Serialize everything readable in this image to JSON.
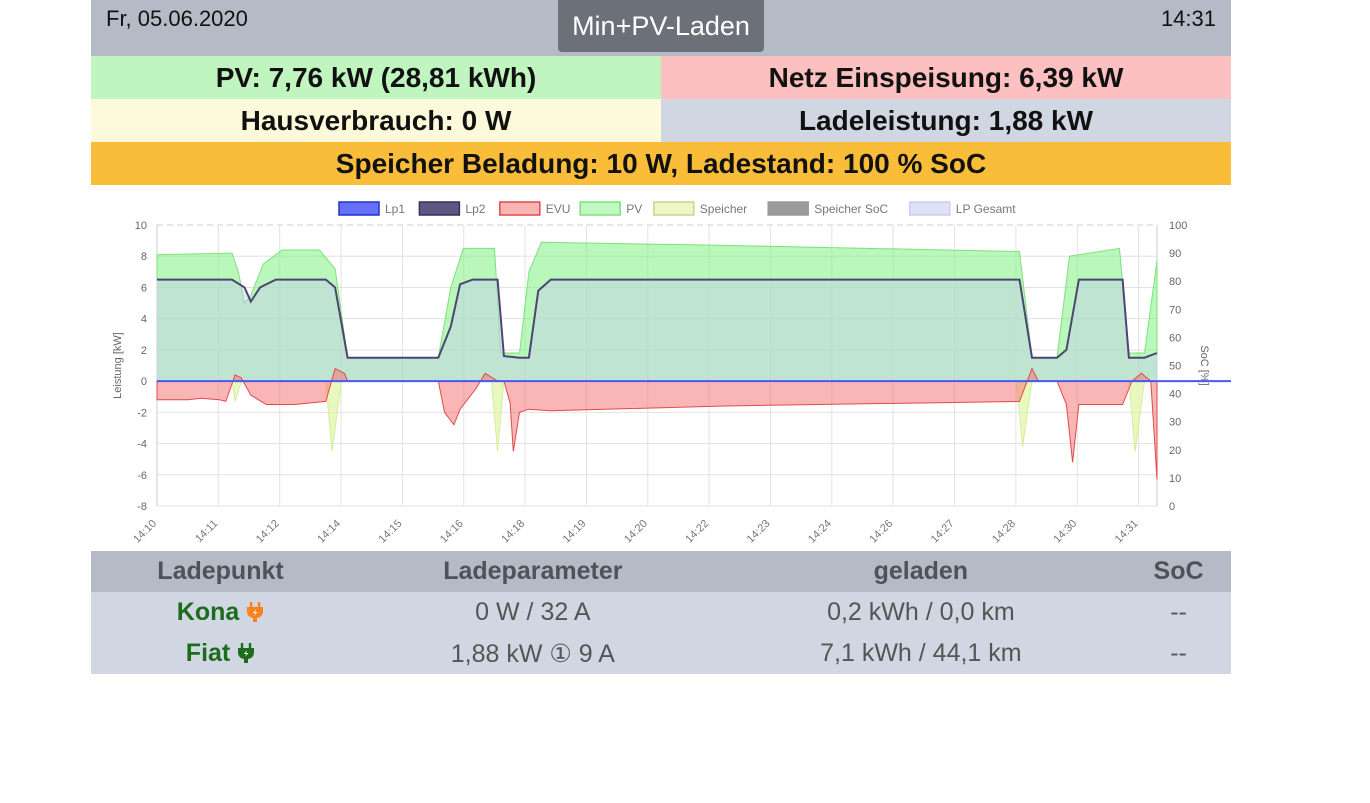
{
  "header": {
    "date": "Fr, 05.06.2020",
    "mode": "Min+PV-Laden",
    "time": "14:31"
  },
  "status": {
    "pv": "PV: 7,76 kW (28,81 kWh)",
    "grid": "Netz Einspeisung: 6,39 kW",
    "house": "Hausverbrauch: 0 W",
    "charging": "Ladeleistung: 1,88 kW",
    "storage": "Speicher Beladung: 10 W, Ladestand: 100 % SoC"
  },
  "colors": {
    "pv": "#c0f5c0",
    "grid_feedin": "#fcc0c0",
    "house": "#fdf9db",
    "charging": "#d1d7e2",
    "storage": "#f9bd3a"
  },
  "chart_data": {
    "type": "area",
    "ylabel": "Leistung [kW]",
    "y2label": "SoC [%]",
    "ylim": [
      -8,
      10
    ],
    "y2lim": [
      0,
      100
    ],
    "yticks": [
      "10",
      "8",
      "6",
      "4",
      "2",
      "0",
      "-2",
      "-4",
      "-6",
      "-8"
    ],
    "y2ticks": [
      "100",
      "90",
      "80",
      "70",
      "60",
      "50",
      "40",
      "30",
      "20",
      "10",
      "0"
    ],
    "xticks": [
      "14:10",
      "14:11",
      "14:12",
      "14:14",
      "14:15",
      "14:16",
      "14:18",
      "14:19",
      "14:20",
      "14:22",
      "14:23",
      "14:24",
      "14:26",
      "14:27",
      "14:28",
      "14:30",
      "14:31"
    ],
    "grid": true,
    "legend_position": "top",
    "series": [
      {
        "name": "Lp1",
        "color": "#4a57f5",
        "values": [
          [
            0,
            0
          ],
          [
            21.5,
            0
          ]
        ]
      },
      {
        "name": "Lp2",
        "color": "#4c4573",
        "values": [
          [
            0,
            6.5
          ],
          [
            1.2,
            6.5
          ],
          [
            1.4,
            6
          ],
          [
            1.5,
            5.1
          ],
          [
            1.65,
            6
          ],
          [
            1.9,
            6.5
          ],
          [
            2.7,
            6.5
          ],
          [
            2.85,
            6
          ],
          [
            3.05,
            1.5
          ],
          [
            4.5,
            1.5
          ],
          [
            4.7,
            3.5
          ],
          [
            4.85,
            6.2
          ],
          [
            5.05,
            6.5
          ],
          [
            5.45,
            6.5
          ],
          [
            5.55,
            1.6
          ],
          [
            5.8,
            1.5
          ],
          [
            5.95,
            1.5
          ],
          [
            6.1,
            5.8
          ],
          [
            6.3,
            6.5
          ],
          [
            13.8,
            6.5
          ],
          [
            14.0,
            1.5
          ],
          [
            14.4,
            1.5
          ],
          [
            14.55,
            2
          ],
          [
            14.75,
            6.5
          ],
          [
            15.45,
            6.5
          ],
          [
            15.55,
            1.5
          ],
          [
            15.8,
            1.5
          ],
          [
            16.0,
            1.8
          ]
        ]
      },
      {
        "name": "EVU",
        "color": "#f05a5a",
        "values": [
          [
            0,
            -1.2
          ],
          [
            0.5,
            -1.2
          ],
          [
            0.7,
            -1.1
          ],
          [
            1.0,
            -1.2
          ],
          [
            1.1,
            -1.3
          ],
          [
            1.25,
            0.4
          ],
          [
            1.35,
            0.2
          ],
          [
            1.5,
            -0.9
          ],
          [
            1.75,
            -1.5
          ],
          [
            2.2,
            -1.5
          ],
          [
            2.7,
            -1.3
          ],
          [
            2.85,
            0.8
          ],
          [
            3.0,
            0.5
          ],
          [
            3.05,
            0
          ],
          [
            4.5,
            0
          ],
          [
            4.6,
            -2
          ],
          [
            4.75,
            -2.8
          ],
          [
            4.85,
            -1.8
          ],
          [
            5.1,
            -0.5
          ],
          [
            5.25,
            0.5
          ],
          [
            5.45,
            0
          ],
          [
            5.55,
            0
          ],
          [
            5.65,
            -1.4
          ],
          [
            5.7,
            -4.5
          ],
          [
            5.8,
            -2
          ],
          [
            5.95,
            -1.8
          ],
          [
            6.3,
            -1.9
          ],
          [
            9,
            -1.6
          ],
          [
            13.8,
            -1.3
          ],
          [
            14.0,
            0.8
          ],
          [
            14.1,
            0
          ],
          [
            14.4,
            0
          ],
          [
            14.55,
            -1.5
          ],
          [
            14.65,
            -5.2
          ],
          [
            14.75,
            -1.5
          ],
          [
            15.45,
            -1.5
          ],
          [
            15.6,
            0
          ],
          [
            15.75,
            0.5
          ],
          [
            15.9,
            0
          ],
          [
            16.0,
            -6.3
          ]
        ]
      },
      {
        "name": "PV",
        "color": "#9ff59f",
        "values": [
          [
            0,
            8.1
          ],
          [
            1.2,
            8.2
          ],
          [
            1.3,
            7
          ],
          [
            1.4,
            5
          ],
          [
            1.5,
            5.5
          ],
          [
            1.7,
            7.5
          ],
          [
            2.0,
            8.4
          ],
          [
            2.6,
            8.4
          ],
          [
            2.85,
            7.2
          ],
          [
            3.05,
            1.5
          ],
          [
            4.5,
            1.5
          ],
          [
            4.7,
            6
          ],
          [
            4.9,
            8.5
          ],
          [
            5.4,
            8.5
          ],
          [
            5.5,
            1.8
          ],
          [
            5.8,
            1.8
          ],
          [
            5.95,
            7
          ],
          [
            6.15,
            8.9
          ],
          [
            9,
            8.7
          ],
          [
            13.8,
            8.3
          ],
          [
            14.0,
            1.5
          ],
          [
            14.4,
            1.5
          ],
          [
            14.6,
            8
          ],
          [
            15.4,
            8.5
          ],
          [
            15.55,
            1.8
          ],
          [
            15.8,
            1.8
          ],
          [
            16.0,
            7.7
          ]
        ]
      },
      {
        "name": "Speicher",
        "color": "#e8f7b8",
        "values": [
          [
            0,
            0
          ],
          [
            1.2,
            0
          ],
          [
            1.25,
            -1.3
          ],
          [
            1.35,
            0
          ],
          [
            2.7,
            0
          ],
          [
            2.8,
            -4.5
          ],
          [
            2.95,
            0
          ],
          [
            5.35,
            0
          ],
          [
            5.45,
            -4.5
          ],
          [
            5.55,
            0
          ],
          [
            13.75,
            0
          ],
          [
            13.85,
            -4.2
          ],
          [
            14.0,
            0
          ],
          [
            15.55,
            0
          ],
          [
            15.65,
            -4.5
          ],
          [
            15.8,
            0
          ],
          [
            16.0,
            0
          ]
        ]
      },
      {
        "name": "Speicher SoC",
        "color": "#9a9a9a",
        "values": [
          [
            0,
            100
          ],
          [
            16,
            100
          ]
        ]
      },
      {
        "name": "LP Gesamt",
        "color": "#d8daf5",
        "values": [
          [
            0,
            6.5
          ],
          [
            1.2,
            6.5
          ],
          [
            1.4,
            6
          ],
          [
            1.5,
            5.1
          ],
          [
            1.65,
            6
          ],
          [
            1.9,
            6.5
          ],
          [
            2.7,
            6.5
          ],
          [
            2.85,
            6
          ],
          [
            3.05,
            1.5
          ],
          [
            4.5,
            1.5
          ],
          [
            4.7,
            3.5
          ],
          [
            4.85,
            6.2
          ],
          [
            5.05,
            6.5
          ],
          [
            5.45,
            6.5
          ],
          [
            5.55,
            1.6
          ],
          [
            5.8,
            1.5
          ],
          [
            5.95,
            1.5
          ],
          [
            6.1,
            5.8
          ],
          [
            6.3,
            6.5
          ],
          [
            13.8,
            6.5
          ],
          [
            14.0,
            1.5
          ],
          [
            14.4,
            1.5
          ],
          [
            14.55,
            2
          ],
          [
            14.75,
            6.5
          ],
          [
            15.45,
            6.5
          ],
          [
            15.55,
            1.5
          ],
          [
            15.8,
            1.5
          ],
          [
            16.0,
            1.8
          ]
        ]
      }
    ],
    "x_range": [
      0,
      16
    ]
  },
  "table": {
    "headers": [
      "Ladepunkt",
      "Ladeparameter",
      "geladen",
      "SoC"
    ],
    "rows": [
      {
        "name": "Kona",
        "icon": "plug-icon-orange",
        "icon_color": "#f7821f",
        "param": "0 W / 32 A",
        "charged": "0,2 kWh / 0,0 km",
        "soc": "--"
      },
      {
        "name": "Fiat",
        "icon": "plug-icon-green",
        "icon_color": "#1d6b1d",
        "param": "1,88 kW ① 9 A",
        "charged": "7,1 kWh / 44,1 km",
        "soc": "--"
      }
    ]
  }
}
